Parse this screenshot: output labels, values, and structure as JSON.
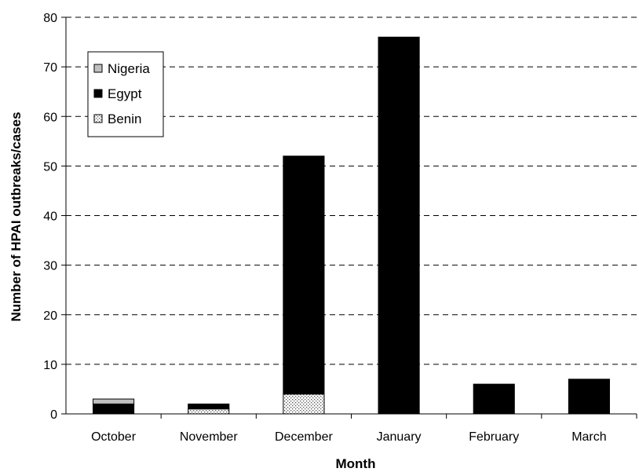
{
  "chart_data": {
    "type": "bar",
    "stacked": true,
    "title": "",
    "xlabel": "Month",
    "ylabel": "Number of HPAI outbreaks/cases",
    "ylim": [
      0,
      80
    ],
    "yticks": [
      0,
      10,
      20,
      30,
      40,
      50,
      60,
      70,
      80
    ],
    "grid": "dashed horizontal",
    "legend_position": "top-left",
    "categories": [
      "October",
      "November",
      "December",
      "January",
      "February",
      "March"
    ],
    "series": [
      {
        "name": "Benin",
        "values": [
          0,
          1,
          4,
          0,
          0,
          0
        ],
        "color": "#ffffff",
        "pattern": "dotted"
      },
      {
        "name": "Egypt",
        "values": [
          2,
          1,
          48,
          76,
          6,
          7
        ],
        "color": "#000000",
        "pattern": "solid"
      },
      {
        "name": "Nigeria",
        "values": [
          1,
          0,
          0,
          0,
          0,
          0
        ],
        "color": "#c0c0c0",
        "pattern": "solid"
      }
    ],
    "legend_order": [
      "Nigeria",
      "Egypt",
      "Benin"
    ]
  }
}
